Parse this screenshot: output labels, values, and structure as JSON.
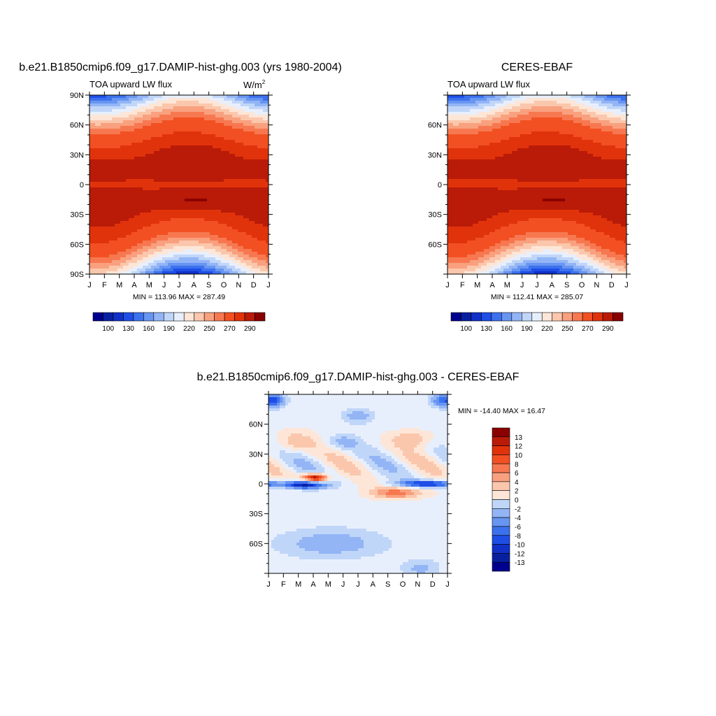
{
  "palette": [
    "#00008f",
    "#0820a0",
    "#1030c8",
    "#1e4ee6",
    "#3c71ee",
    "#6795f1",
    "#93b5f6",
    "#c0d6f9",
    "#e8effc",
    "#fde6d7",
    "#fbc7ac",
    "#f9a07e",
    "#f77850",
    "#f25022",
    "#e1330b",
    "#b91b08",
    "#8a0000"
  ],
  "chart_data": [
    {
      "type": "heatmap",
      "title": "b.e21.B1850cmip6.f09_g17.DAMIP-hist-ghg.003 (yrs 1980-2004)",
      "left_label": "TOA upward LW flux",
      "units_main": "W/m",
      "units_sup": "2",
      "x_ticks": [
        "J",
        "F",
        "M",
        "A",
        "M",
        "J",
        "J",
        "A",
        "S",
        "O",
        "N",
        "D",
        "J"
      ],
      "y_ticks": [
        "90N",
        "60N",
        "30N",
        "0",
        "30S",
        "60S",
        "90S"
      ],
      "y_tick_values": [
        90,
        60,
        30,
        0,
        -30,
        -60,
        -90
      ],
      "ylim": [
        -90,
        90
      ],
      "stats": "MIN = 113.96 MAX = 287.49",
      "min": 113.96,
      "max": 287.49,
      "colorbar": {
        "levels": [
          100,
          110,
          120,
          130,
          140,
          150,
          160,
          170,
          180,
          190,
          200,
          210,
          220,
          230,
          240,
          250,
          260,
          270,
          280,
          290
        ],
        "labels": [
          "100",
          "130",
          "160",
          "190",
          "220",
          "250",
          "270",
          "290"
        ],
        "label_positions": [
          1,
          2,
          3,
          4,
          5,
          6,
          7,
          8
        ]
      }
    },
    {
      "type": "heatmap",
      "title": "CERES-EBAF",
      "left_label": "TOA upward LW flux",
      "x_ticks": [
        "J",
        "F",
        "M",
        "A",
        "M",
        "J",
        "J",
        "A",
        "S",
        "O",
        "N",
        "D",
        "J"
      ],
      "y_ticks": [
        "60N",
        "30N",
        "0",
        "30S",
        "60S"
      ],
      "y_tick_values": [
        60,
        30,
        0,
        -30,
        -60
      ],
      "ylim": [
        -90,
        90
      ],
      "stats": "MIN = 112.41 MAX = 285.07",
      "min": 112.41,
      "max": 285.07,
      "colorbar": {
        "labels": [
          "100",
          "130",
          "160",
          "190",
          "220",
          "250",
          "270",
          "290"
        ]
      }
    },
    {
      "type": "heatmap",
      "title": "b.e21.B1850cmip6.f09_g17.DAMIP-hist-ghg.003 - CERES-EBAF",
      "x_ticks": [
        "J",
        "F",
        "M",
        "A",
        "M",
        "J",
        "J",
        "A",
        "S",
        "O",
        "N",
        "D",
        "J"
      ],
      "y_ticks": [
        "60N",
        "30N",
        "0",
        "30S",
        "60S"
      ],
      "y_tick_values": [
        60,
        30,
        0,
        -30,
        -60
      ],
      "ylim": [
        -90,
        90
      ],
      "stats": "MIN = -14.40 MAX =  16.47",
      "min": -14.4,
      "max": 16.47,
      "colorbar": {
        "levels": [
          -13,
          -12,
          -10,
          -8,
          -6,
          -4,
          -2,
          0,
          2,
          4,
          6,
          8,
          10,
          12,
          13
        ],
        "labels": [
          "13",
          "12",
          "10",
          "8",
          "6",
          "4",
          "2",
          "0",
          "-2",
          "-4",
          "-6",
          "-8",
          "-10",
          "-12",
          "-13"
        ]
      }
    }
  ]
}
